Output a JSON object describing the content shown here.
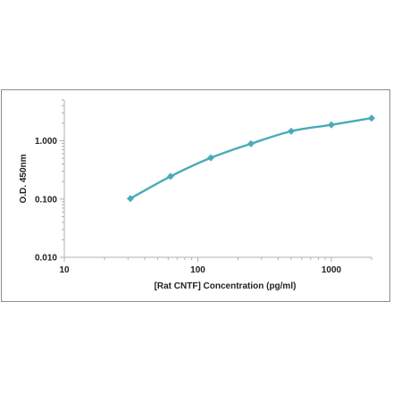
{
  "chart_data": {
    "type": "line",
    "title": "",
    "xlabel": "[Rat CNTF] Concentration (pg/ml)",
    "ylabel": "O.D. 450nm",
    "x_scale": "log",
    "y_scale": "log",
    "xlim": [
      10,
      2000
    ],
    "ylim": [
      0.01,
      5
    ],
    "x_ticks": [
      {
        "value": 10,
        "label": "10"
      },
      {
        "value": 100,
        "label": "100"
      },
      {
        "value": 1000,
        "label": "1000"
      }
    ],
    "y_ticks": [
      {
        "value": 0.01,
        "label": "0.010"
      },
      {
        "value": 0.1,
        "label": "0.100"
      },
      {
        "value": 1,
        "label": "1.000"
      }
    ],
    "grid": false,
    "series": [
      {
        "color": "#4aaab9",
        "marker": "diamond",
        "x": [
          31.25,
          62.5,
          125,
          250,
          500,
          1000,
          2000
        ],
        "y": [
          0.102,
          0.245,
          0.51,
          0.89,
          1.46,
          1.88,
          2.45
        ]
      }
    ]
  }
}
